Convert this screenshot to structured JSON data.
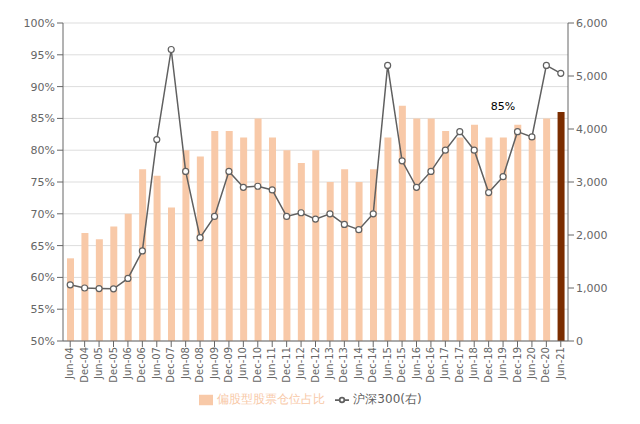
{
  "chart_data": {
    "type": "bar",
    "categories": [
      "Jun-04",
      "Dec-04",
      "Jun-05",
      "Dec-05",
      "Jun-06",
      "Dec-06",
      "Jun-07",
      "Dec-07",
      "Jun-08",
      "Dec-08",
      "Jun-09",
      "Dec-09",
      "Jun-10",
      "Dec-10",
      "Jun-11",
      "Dec-11",
      "Jun-12",
      "Dec-12",
      "Jun-13",
      "Dec-13",
      "Jun-14",
      "Dec-14",
      "Jun-15",
      "Dec-15",
      "Jun-16",
      "Dec-16",
      "Jun-17",
      "Dec-17",
      "Jun-18",
      "Dec-18",
      "Jun-19",
      "Dec-19",
      "Jun-20",
      "Dec-20",
      "Jun-21"
    ],
    "series": [
      {
        "name": "偏股型股票仓位占比",
        "type": "bar",
        "color": "#f8c9a8",
        "colors": [
          "#f8c9a8",
          "#f8c9a8",
          "#f8c9a8",
          "#f8c9a8",
          "#f8c9a8",
          "#f8c9a8",
          "#f8c9a8",
          "#f8c9a8",
          "#f8c9a8",
          "#f8c9a8",
          "#f8c9a8",
          "#f8c9a8",
          "#f8c9a8",
          "#f8c9a8",
          "#f8c9a8",
          "#f8c9a8",
          "#f8c9a8",
          "#f8c9a8",
          "#f8c9a8",
          "#f8c9a8",
          "#f8c9a8",
          "#f8c9a8",
          "#f8c9a8",
          "#f8c9a8",
          "#f8c9a8",
          "#f8c9a8",
          "#f8c9a8",
          "#f8c9a8",
          "#f8c9a8",
          "#f8c9a8",
          "#f8c9a8",
          "#f8c9a8",
          "#f8c9a8",
          "#f8c9a8",
          "#7B2D00"
        ],
        "values": [
          0.63,
          0.67,
          0.66,
          0.68,
          0.7,
          0.77,
          0.76,
          0.71,
          0.8,
          0.79,
          0.83,
          0.83,
          0.82,
          0.85,
          0.82,
          0.8,
          0.78,
          0.8,
          0.75,
          0.77,
          0.75,
          0.77,
          0.82,
          0.87,
          0.85,
          0.85,
          0.83,
          0.82,
          0.84,
          0.82,
          0.82,
          0.84,
          0.82,
          0.85,
          0.86
        ]
      },
      {
        "name": "沪深300(右)",
        "type": "line",
        "axis": "y2",
        "color": "#606060",
        "marker": "circle",
        "values": [
          1060,
          1000,
          990,
          985,
          1180,
          1700,
          3800,
          5500,
          3200,
          1950,
          2350,
          3200,
          2900,
          2920,
          2850,
          2350,
          2420,
          2300,
          2400,
          2200,
          2100,
          2400,
          5200,
          3400,
          2900,
          3200,
          3600,
          3950,
          3600,
          2800,
          3100,
          3950,
          3850,
          5200,
          5050
        ]
      }
    ],
    "ylim": [
      0.5,
      1.0
    ],
    "yticks": [
      {
        "value": 0.5,
        "label": "50%"
      },
      {
        "value": 0.55,
        "label": "55%"
      },
      {
        "value": 0.6,
        "label": "60%"
      },
      {
        "value": 0.65,
        "label": "65%"
      },
      {
        "value": 0.7,
        "label": "70%"
      },
      {
        "value": 0.75,
        "label": "75%"
      },
      {
        "value": 0.8,
        "label": "80%"
      },
      {
        "value": 0.85,
        "label": "85%"
      },
      {
        "value": 0.9,
        "label": "90%"
      },
      {
        "value": 0.95,
        "label": "95%"
      },
      {
        "value": 1.0,
        "label": "100%"
      }
    ],
    "y2lim": [
      0,
      6000
    ],
    "y2ticks": [
      0,
      {
        "value": 1000,
        "label": "1,000"
      },
      {
        "value": 2000,
        "label": "2,000"
      },
      {
        "value": 3000,
        "label": "3,000"
      },
      {
        "value": 4000,
        "label": "4,000"
      },
      {
        "value": 5000,
        "label": "5,000"
      },
      {
        "value": 6000,
        "label": "6,000"
      }
    ],
    "grid": true,
    "legend": "bottom",
    "annotations": [
      {
        "text": "85%",
        "x": "Jun-19",
        "y": 0.856
      }
    ]
  }
}
